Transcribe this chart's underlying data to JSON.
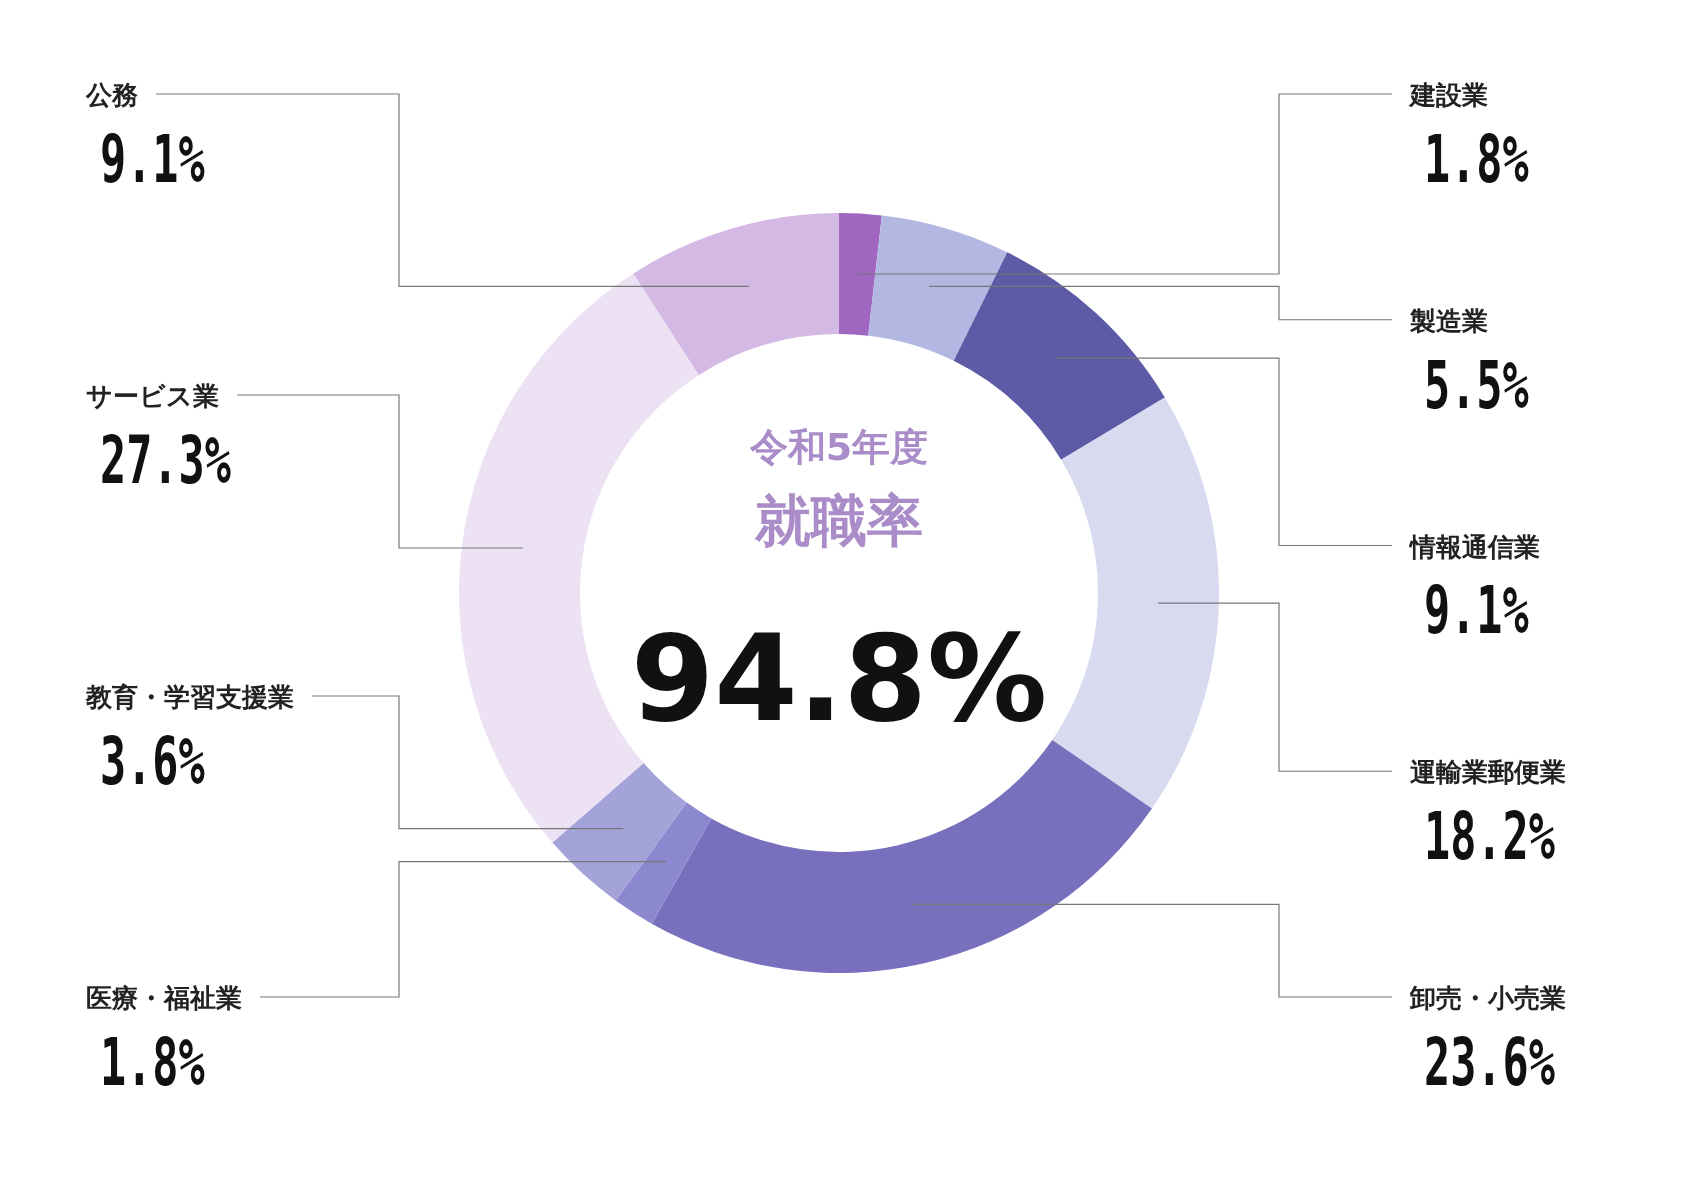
{
  "chart_data": {
    "type": "donut",
    "title": "令和5年度",
    "subtitle": "就職率",
    "annotations": [
      "94.8%"
    ],
    "categories": [
      "建設業",
      "製造業",
      "情報通信業",
      "運輸業郵便業",
      "卸売・小売業",
      "医療・福祉業",
      "教育・学習支援業",
      "サービス業",
      "公務"
    ],
    "values": [
      1.8,
      5.5,
      9.1,
      18.2,
      23.6,
      1.8,
      3.6,
      27.3,
      9.1
    ],
    "colors": [
      "#a066c0",
      "#b3b8e3",
      "#5e5ba6",
      "#d8daf0",
      "#7870bd",
      "#8c88d0",
      "#a3a3da",
      "#ede2f4",
      "#d5b9e5"
    ],
    "value_labels": [
      "1.8%",
      "5.5%",
      "9.1%",
      "18.2%",
      "23.6%",
      "1.8%",
      "3.6%",
      "27.3%",
      "9.1%"
    ]
  }
}
